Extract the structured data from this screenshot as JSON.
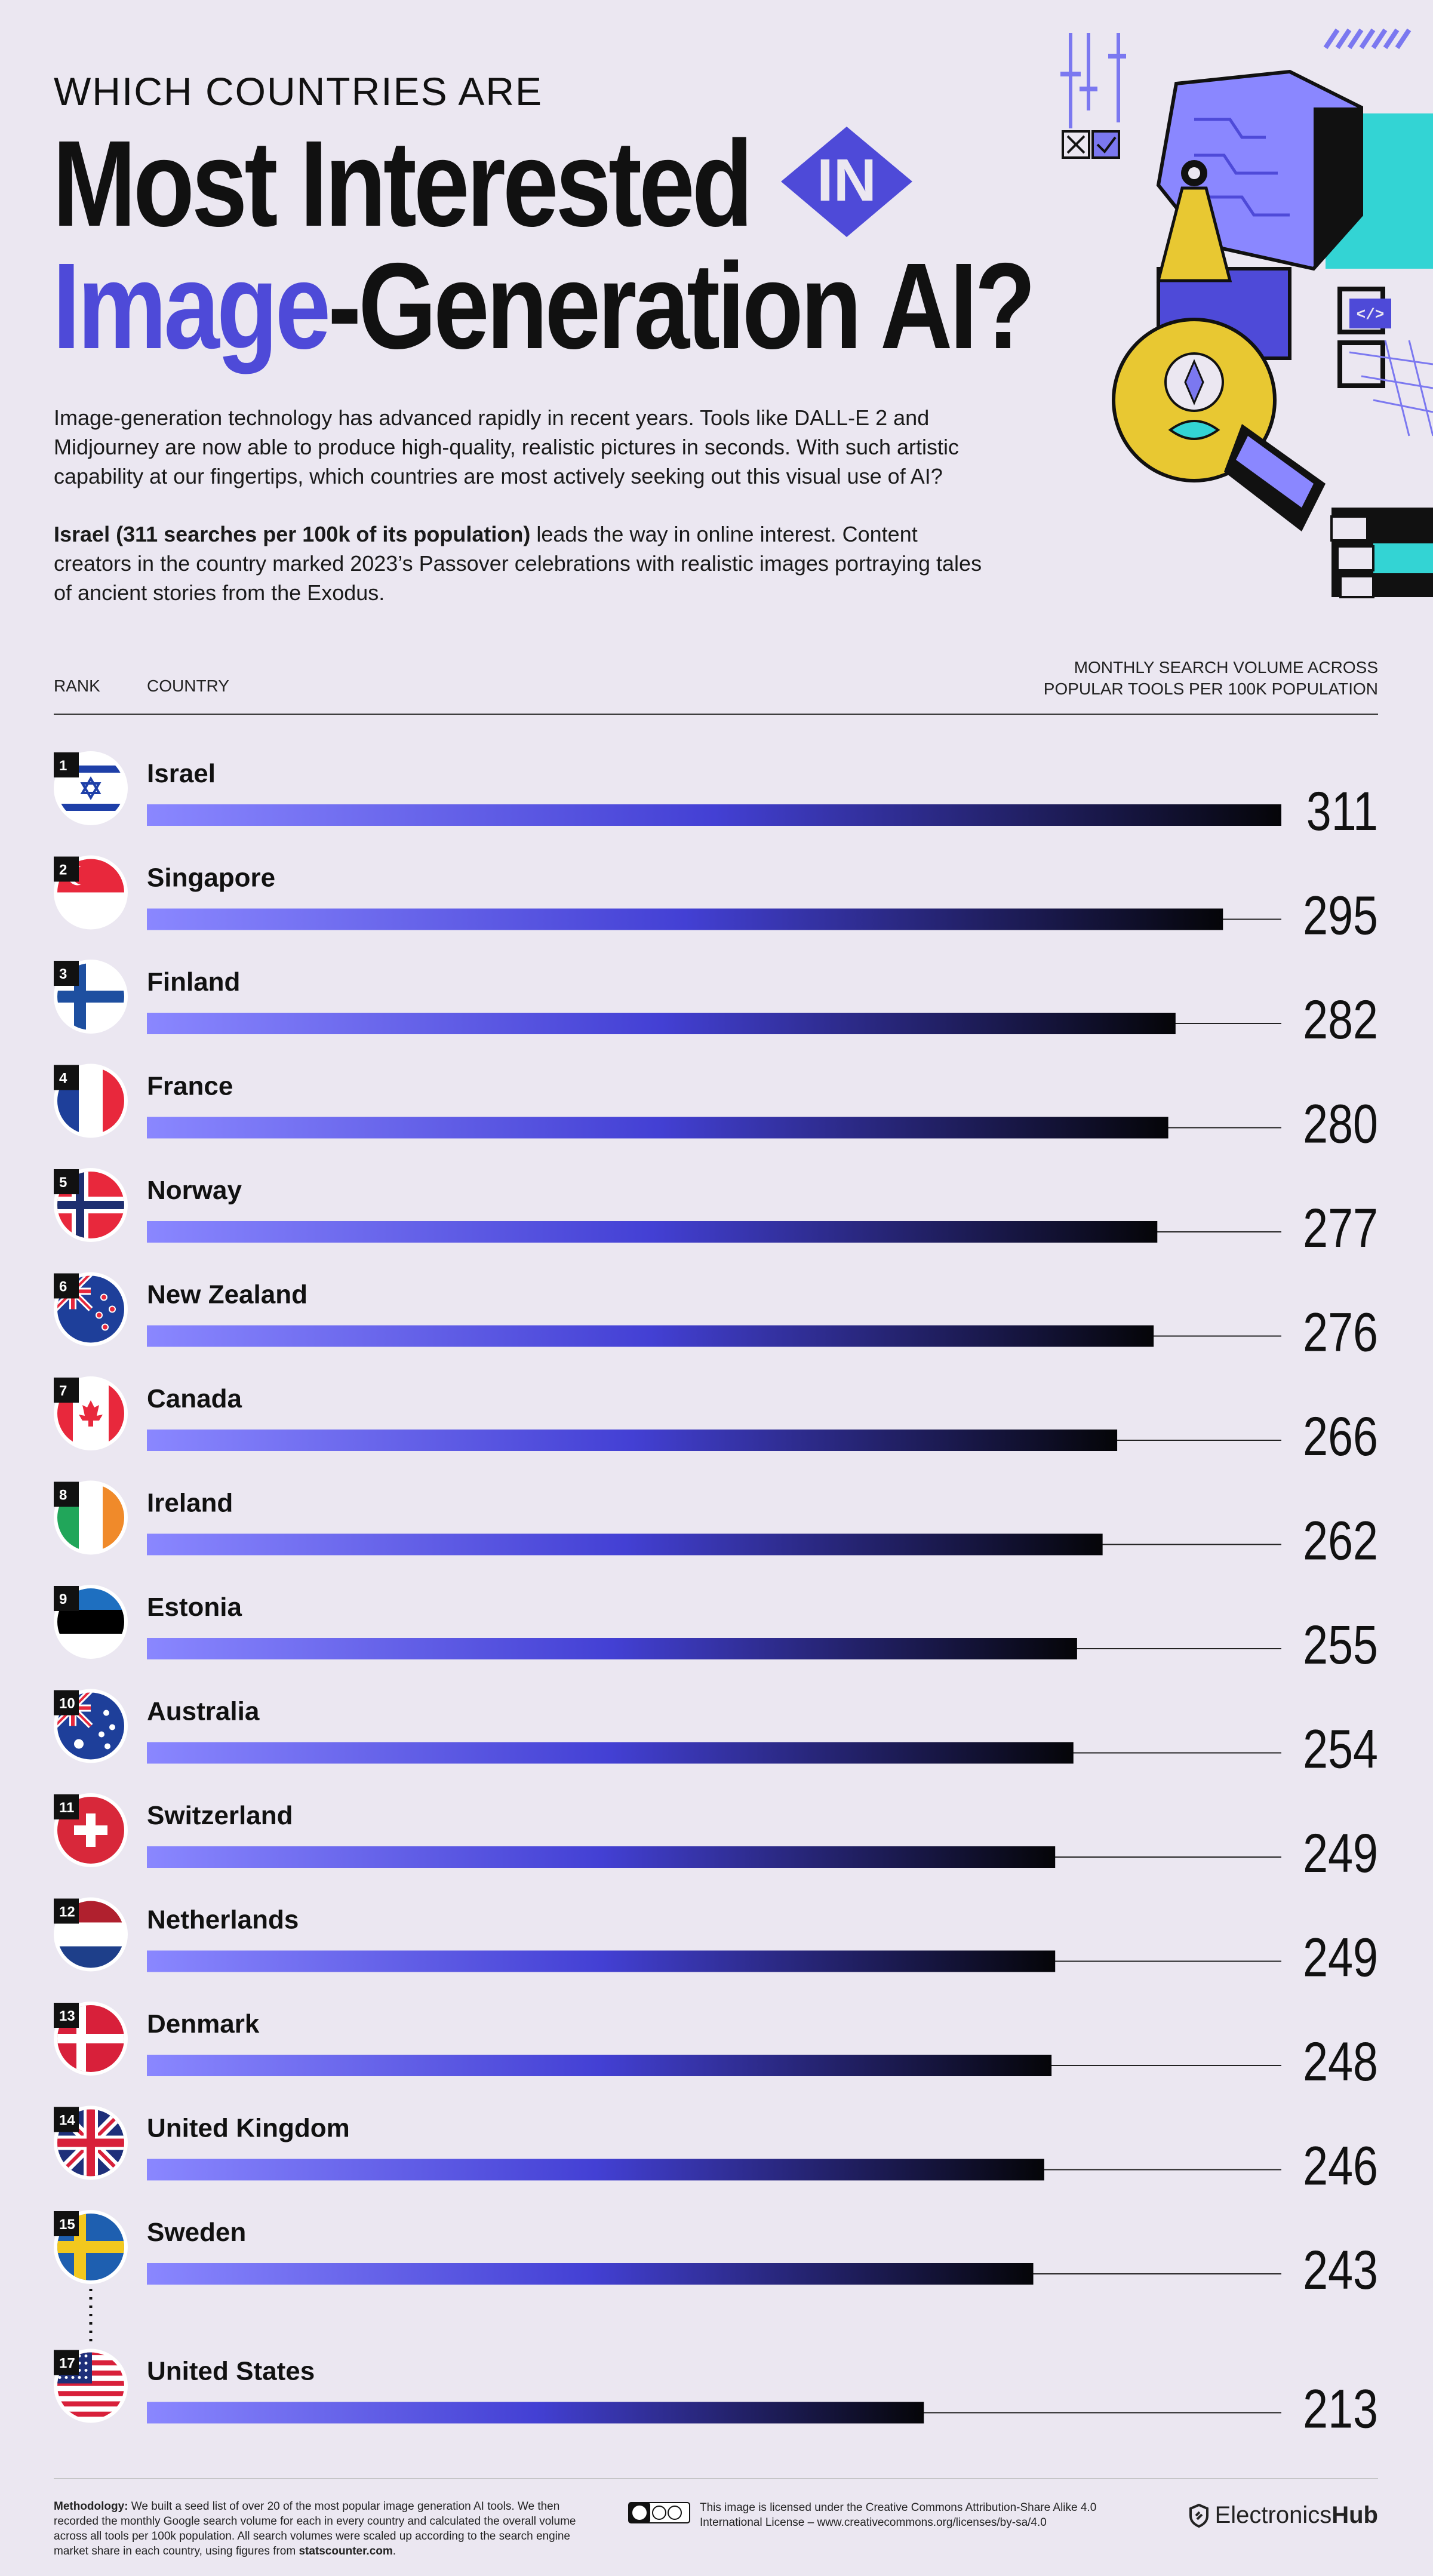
{
  "header": {
    "kicker": "WHICH COUNTRIES ARE",
    "title_line1": "Most Interested",
    "badge": "IN",
    "title_line2_highlight": "Image",
    "title_line2_rest": "-Generation AI?"
  },
  "intro": {
    "p1": "Image-generation technology has advanced rapidly in recent years. Tools like DALL-E 2 and Midjourney are now able to produce high-quality, realistic pictures in seconds. With such artistic capability at our fingertips, which countries are most actively seeking out this visual use of AI?",
    "p2_bold": "Israel (311 searches per 100k of its population)",
    "p2_rest": " leads the way in online interest. Content creators in the country marked 2023’s Passover celebrations with realistic images portraying tales of ancient stories from the Exodus."
  },
  "columns": {
    "rank": "RANK",
    "country": "COUNTRY",
    "metric_line1": "MONTHLY SEARCH VOLUME ACROSS",
    "metric_line2": "POPULAR TOOLS PER 100K POPULATION"
  },
  "colors": {
    "accent": "#4e4ad8",
    "bar_start": "#8a87ff",
    "bar_mid": "#4340d4",
    "bar_end": "#050508",
    "background": "#ebe7f1"
  },
  "chart_data": {
    "type": "bar",
    "orientation": "horizontal",
    "xlim": [
      0,
      311
    ],
    "categories": [
      "Israel",
      "Singapore",
      "Finland",
      "France",
      "Norway",
      "New Zealand",
      "Canada",
      "Ireland",
      "Estonia",
      "Australia",
      "Switzerland",
      "Netherlands",
      "Denmark",
      "United Kingdom",
      "Sweden",
      "United States"
    ],
    "ranks": [
      1,
      2,
      3,
      4,
      5,
      6,
      7,
      8,
      9,
      10,
      11,
      12,
      13,
      14,
      15,
      17
    ],
    "values": [
      311,
      295,
      282,
      280,
      277,
      276,
      266,
      262,
      255,
      254,
      249,
      249,
      248,
      246,
      243,
      213
    ],
    "flags": [
      "israel-flag-icon",
      "singapore-flag-icon",
      "finland-flag-icon",
      "france-flag-icon",
      "norway-flag-icon",
      "new-zealand-flag-icon",
      "canada-flag-icon",
      "ireland-flag-icon",
      "estonia-flag-icon",
      "australia-flag-icon",
      "switzerland-flag-icon",
      "netherlands-flag-icon",
      "denmark-flag-icon",
      "united-kingdom-flag-icon",
      "sweden-flag-icon",
      "united-states-flag-icon"
    ]
  },
  "footer": {
    "methodology_label": "Methodology:",
    "methodology_text": " We built a seed list of over 20 of the most popular image generation AI tools. We then recorded the monthly Google search volume for each in every country and calculated the overall volume across all tools per 100k population. All search volumes were scaled up according to the search engine market share in each country, using figures from ",
    "methodology_source": "statscounter.com",
    "methodology_end": ".",
    "license_text": "This image is licensed under the Creative Commons Attribution-Share Alike 4.0 International License – www.creativecommons.org/licenses/by-sa/4.0",
    "brand_part1": "Electronics",
    "brand_part2": "Hub"
  }
}
